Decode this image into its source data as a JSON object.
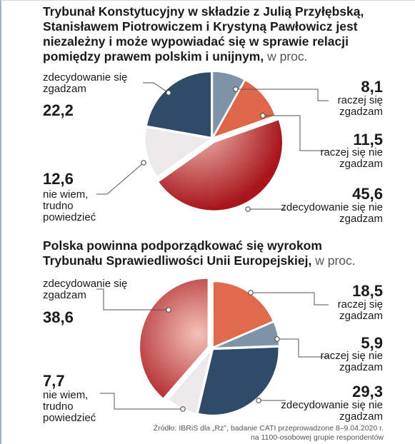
{
  "charts": [
    {
      "title": "Trybunał Konstytucyjny w składzie z Julią Przyłębską, Stanisławem Piotrowiczem i Krystyną Pawłowicz jest niezależny i może wypowiadać się w sprawie relacji pomiędzy prawem polskim i unijnym,",
      "unit": "w proc."
    },
    {
      "title": "Polska powinna podporządkować się wyrokom Trybunału Sprawiedliwości Unii Europejskiej,",
      "unit": "w proc."
    }
  ],
  "chart_data": [
    {
      "type": "pie",
      "title": "Trybunał Konstytucyjny w składzie z Julią Przyłębską, Stanisławem Piotrowiczem i Krystyną Pawłowicz jest niezależny i może wypowiadać się w sprawie relacji pomiędzy prawem polskim i unijnym, w proc.",
      "slices": [
        {
          "label": "raczej się zgadzam",
          "value": 8.1,
          "value_text": "8,1",
          "color": "#7f93a8"
        },
        {
          "label": "raczej się nie zgadzam",
          "value": 11.5,
          "value_text": "11,5",
          "color": "#e0664a"
        },
        {
          "label": "zdecydowanie się nie zgadzam",
          "value": 45.6,
          "value_text": "45,6",
          "color": "#c0282c"
        },
        {
          "label": "nie wiem, trudno powiedzieć",
          "value": 12.6,
          "value_text": "12,6",
          "color": "#ebe9ea"
        },
        {
          "label": "zdecydowanie się zgadzam",
          "value": 22.2,
          "value_text": "22,2",
          "color": "#2e4b68"
        }
      ]
    },
    {
      "type": "pie",
      "title": "Polska powinna podporządkować się wyrokom Trybunału Sprawiedliwości Unii Europejskiej, w proc.",
      "slices": [
        {
          "label": "raczej się zgadzam",
          "value": 18.5,
          "value_text": "18,5",
          "color": "#e06a4c"
        },
        {
          "label": "raczej się nie zgadzam",
          "value": 5.9,
          "value_text": "5,9",
          "color": "#7f93a8"
        },
        {
          "label": "zdecydowanie się nie zgadzam",
          "value": 29.3,
          "value_text": "29,3",
          "color": "#2e4b68"
        },
        {
          "label": "nie wiem, trudno powiedzieć",
          "value": 7.7,
          "value_text": "7,7",
          "color": "#ebe9ea"
        },
        {
          "label": "zdecydowanie się zgadzam",
          "value": 38.6,
          "value_text": "38,6",
          "color": "#c0282c"
        }
      ]
    }
  ],
  "source": {
    "line1": "Źródło: IBRiS dla „Rz\", badanie CATI przeprowadzone 8–9.04.2020 r.",
    "line2": "na 1100-osobowej grupie respondentów"
  }
}
